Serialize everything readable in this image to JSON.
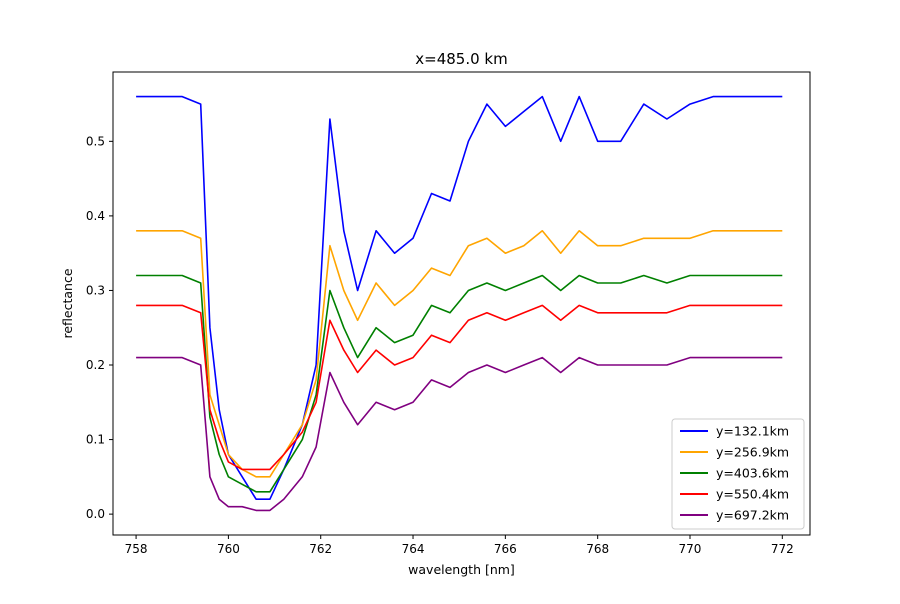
{
  "chart_data": {
    "type": "line",
    "title": "x=485.0 km",
    "xlabel": "wavelength [nm]",
    "ylabel": "reflectance",
    "xlim": [
      757.5,
      772.6
    ],
    "ylim": [
      -0.028,
      0.593
    ],
    "xticks": [
      758,
      760,
      762,
      764,
      766,
      768,
      770,
      772
    ],
    "yticks": [
      0.0,
      0.1,
      0.2,
      0.3,
      0.4,
      0.5
    ],
    "ytick_labels": [
      "0.0",
      "0.1",
      "0.2",
      "0.3",
      "0.4",
      "0.5"
    ],
    "grid": false,
    "legend_position": "lower-right",
    "x": [
      758.0,
      759.0,
      759.4,
      759.6,
      759.8,
      760.0,
      760.3,
      760.6,
      760.9,
      761.2,
      761.6,
      761.9,
      762.2,
      762.5,
      762.8,
      763.2,
      763.6,
      764.0,
      764.4,
      764.8,
      765.2,
      765.6,
      766.0,
      766.4,
      766.8,
      767.2,
      767.6,
      768.0,
      768.5,
      769.0,
      769.5,
      770.0,
      770.5,
      771.0,
      771.5,
      772.0
    ],
    "series": [
      {
        "name": "y=132.1km",
        "color": "#0000ff",
        "values": [
          0.56,
          0.56,
          0.55,
          0.25,
          0.14,
          0.08,
          0.05,
          0.02,
          0.02,
          0.06,
          0.12,
          0.2,
          0.53,
          0.38,
          0.3,
          0.38,
          0.35,
          0.37,
          0.43,
          0.42,
          0.5,
          0.55,
          0.52,
          0.54,
          0.56,
          0.5,
          0.56,
          0.5,
          0.5,
          0.55,
          0.53,
          0.55,
          0.56,
          0.56,
          0.56,
          0.56
        ]
      },
      {
        "name": "y=256.9km",
        "color": "#ffa500",
        "values": [
          0.38,
          0.38,
          0.37,
          0.16,
          0.12,
          0.08,
          0.06,
          0.05,
          0.05,
          0.08,
          0.12,
          0.18,
          0.36,
          0.3,
          0.26,
          0.31,
          0.28,
          0.3,
          0.33,
          0.32,
          0.36,
          0.37,
          0.35,
          0.36,
          0.38,
          0.35,
          0.38,
          0.36,
          0.36,
          0.37,
          0.37,
          0.37,
          0.38,
          0.38,
          0.38,
          0.38
        ]
      },
      {
        "name": "y=403.6km",
        "color": "#008000",
        "values": [
          0.32,
          0.32,
          0.31,
          0.13,
          0.08,
          0.05,
          0.04,
          0.03,
          0.03,
          0.06,
          0.1,
          0.16,
          0.3,
          0.25,
          0.21,
          0.25,
          0.23,
          0.24,
          0.28,
          0.27,
          0.3,
          0.31,
          0.3,
          0.31,
          0.32,
          0.3,
          0.32,
          0.31,
          0.31,
          0.32,
          0.31,
          0.32,
          0.32,
          0.32,
          0.32,
          0.32
        ]
      },
      {
        "name": "y=550.4km",
        "color": "#ff0000",
        "values": [
          0.28,
          0.28,
          0.27,
          0.14,
          0.1,
          0.07,
          0.06,
          0.06,
          0.06,
          0.08,
          0.11,
          0.15,
          0.26,
          0.22,
          0.19,
          0.22,
          0.2,
          0.21,
          0.24,
          0.23,
          0.26,
          0.27,
          0.26,
          0.27,
          0.28,
          0.26,
          0.28,
          0.27,
          0.27,
          0.27,
          0.27,
          0.28,
          0.28,
          0.28,
          0.28,
          0.28
        ]
      },
      {
        "name": "y=697.2km",
        "color": "#800080",
        "values": [
          0.21,
          0.21,
          0.2,
          0.05,
          0.02,
          0.01,
          0.01,
          0.005,
          0.005,
          0.02,
          0.05,
          0.09,
          0.19,
          0.15,
          0.12,
          0.15,
          0.14,
          0.15,
          0.18,
          0.17,
          0.19,
          0.2,
          0.19,
          0.2,
          0.21,
          0.19,
          0.21,
          0.2,
          0.2,
          0.2,
          0.2,
          0.21,
          0.21,
          0.21,
          0.21,
          0.21
        ]
      }
    ]
  }
}
